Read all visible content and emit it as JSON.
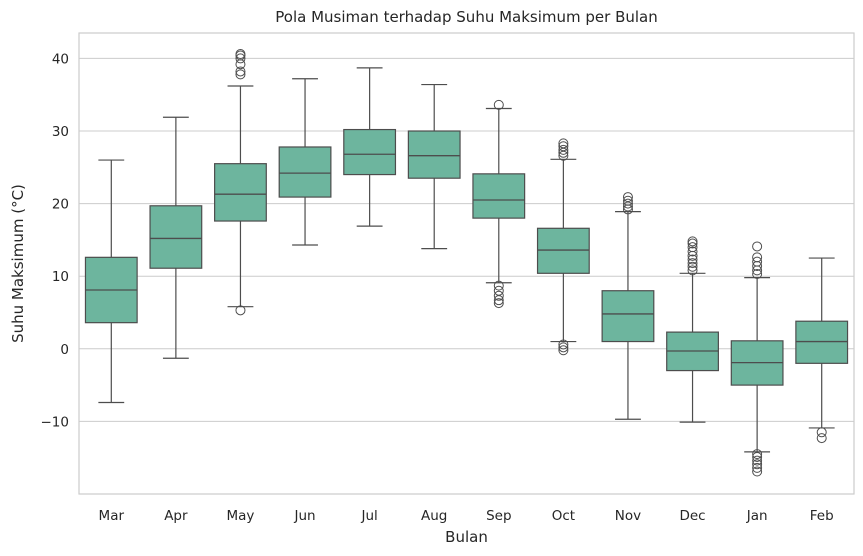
{
  "chart_data": {
    "type": "box",
    "title": "Pola Musiman terhadap Suhu Maksimum per Bulan",
    "xlabel": "Bulan",
    "ylabel": "Suhu Maksimum (°C)",
    "ylim": [
      -20,
      43.5
    ],
    "yticks": [
      40,
      30,
      20,
      10,
      0,
      -10
    ],
    "ytick_labels": [
      "40",
      "30",
      "20",
      "10",
      "0",
      "−10"
    ],
    "grid": "horizontal",
    "box_color": "#6db59e",
    "line_color": "#4d4d4d",
    "categories": [
      "Mar",
      "Apr",
      "May",
      "Jun",
      "Jul",
      "Aug",
      "Sep",
      "Oct",
      "Nov",
      "Dec",
      "Jan",
      "Feb"
    ],
    "boxes": [
      {
        "label": "Mar",
        "whislo": -7.4,
        "q1": 3.6,
        "med": 8.1,
        "q3": 12.6,
        "whishi": 26.0,
        "fliers": []
      },
      {
        "label": "Apr",
        "whislo": -1.3,
        "q1": 11.1,
        "med": 15.2,
        "q3": 19.7,
        "whishi": 31.9,
        "fliers": []
      },
      {
        "label": "May",
        "whislo": 5.8,
        "q1": 17.6,
        "med": 21.3,
        "q3": 25.5,
        "whishi": 36.2,
        "fliers": [
          5.3,
          37.8,
          38.2,
          39.2,
          40.0,
          40.4,
          40.6
        ]
      },
      {
        "label": "Jun",
        "whislo": 14.3,
        "q1": 20.9,
        "med": 24.2,
        "q3": 27.8,
        "whishi": 37.2,
        "fliers": []
      },
      {
        "label": "Jul",
        "whislo": 16.9,
        "q1": 24.0,
        "med": 26.8,
        "q3": 30.2,
        "whishi": 38.7,
        "fliers": []
      },
      {
        "label": "Aug",
        "whislo": 13.8,
        "q1": 23.5,
        "med": 26.6,
        "q3": 30.0,
        "whishi": 36.4,
        "fliers": []
      },
      {
        "label": "Sep",
        "whislo": 9.1,
        "q1": 18.0,
        "med": 20.5,
        "q3": 24.1,
        "whishi": 33.1,
        "fliers": [
          6.3,
          6.7,
          7.3,
          8.0,
          8.7,
          33.6
        ]
      },
      {
        "label": "Oct",
        "whislo": 1.0,
        "q1": 10.4,
        "med": 13.6,
        "q3": 16.6,
        "whishi": 26.1,
        "fliers": [
          -0.2,
          0.2,
          0.6,
          26.6,
          27.0,
          27.4,
          27.9,
          28.3
        ]
      },
      {
        "label": "Nov",
        "whislo": -9.7,
        "q1": 1.0,
        "med": 4.8,
        "q3": 8.0,
        "whishi": 18.9,
        "fliers": [
          19.2,
          19.6,
          20.0,
          20.4,
          20.9
        ]
      },
      {
        "label": "Dec",
        "whislo": -10.1,
        "q1": -3.0,
        "med": -0.3,
        "q3": 2.3,
        "whishi": 10.4,
        "fliers": [
          10.8,
          11.3,
          11.8,
          12.3,
          12.8,
          13.4,
          14.0,
          14.5,
          14.8
        ]
      },
      {
        "label": "Jan",
        "whislo": -14.2,
        "q1": -5.0,
        "med": -1.9,
        "q3": 1.1,
        "whishi": 9.8,
        "fliers": [
          -16.9,
          -16.4,
          -15.9,
          -15.4,
          -14.9,
          -14.5,
          10.3,
          10.8,
          11.4,
          12.0,
          12.6,
          14.1
        ]
      },
      {
        "label": "Feb",
        "whislo": -10.9,
        "q1": -2.0,
        "med": 1.0,
        "q3": 3.8,
        "whishi": 12.5,
        "fliers": [
          -11.5,
          -12.3
        ]
      }
    ]
  }
}
